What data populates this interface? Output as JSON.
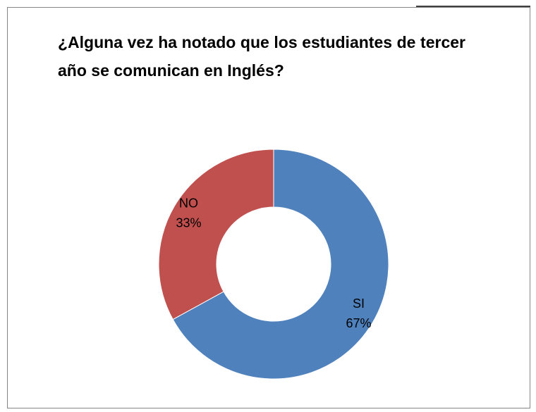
{
  "chart_data": {
    "type": "donut",
    "title": "¿Alguna vez ha notado que los estudiantes de tercer año se comunican en Inglés?",
    "categories": [
      "SI",
      "NO"
    ],
    "values": [
      67,
      33
    ],
    "value_labels": [
      "67%",
      "33%"
    ],
    "colors": [
      "#4f81bd",
      "#c0504d"
    ]
  }
}
